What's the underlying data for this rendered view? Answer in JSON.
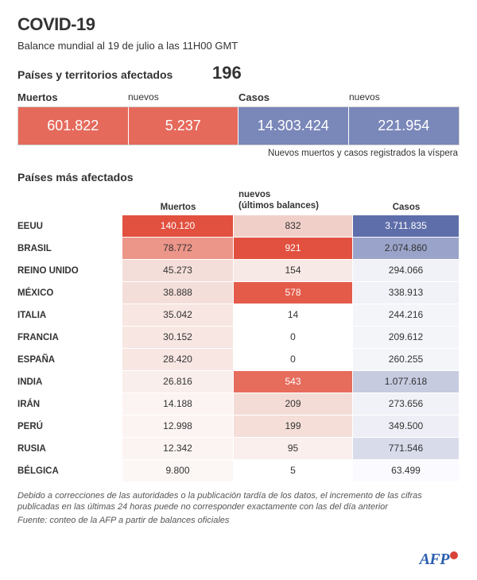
{
  "title": "COVID-19",
  "subtitle": "Balance mundial al 19 de julio a las 11H00 GMT",
  "affected": {
    "label": "Países y territorios afectados",
    "count": "196"
  },
  "summary": {
    "labels": {
      "deaths": "Muertos",
      "deaths_new": "nuevos",
      "cases": "Casos",
      "cases_new": "nuevos"
    },
    "values": {
      "deaths": "601.822",
      "deaths_new": "5.237",
      "cases": "14.303.424",
      "cases_new": "221.954"
    },
    "colors": {
      "deaths_bg": "#e56a5c",
      "cases_bg": "#7a87b9"
    }
  },
  "note": "Nuevos muertos y casos registrados la víspera",
  "section_title": "Países más afectados",
  "table": {
    "headers": {
      "country": "",
      "deaths": "Muertos",
      "new": "nuevos\n(últimos balances)",
      "cases": "Casos"
    },
    "rows": [
      {
        "country": "EEUU",
        "deaths": "140.120",
        "new": "832",
        "cases": "3.711.835",
        "bg": {
          "deaths": "#e2503f",
          "new": "#f1cfc9",
          "cases": "#5e6eaa"
        },
        "fg": {
          "deaths": "#ffffff",
          "new": "#333333",
          "cases": "#ffffff"
        }
      },
      {
        "country": "BRASIL",
        "deaths": "78.772",
        "new": "921",
        "cases": "2.074.860",
        "bg": {
          "deaths": "#ec9589",
          "new": "#e2503f",
          "cases": "#9aa3c9"
        },
        "fg": {
          "deaths": "#333333",
          "new": "#ffffff",
          "cases": "#333333"
        }
      },
      {
        "country": "REINO UNIDO",
        "deaths": "45.273",
        "new": "154",
        "cases": "294.066",
        "bg": {
          "deaths": "#f4ded9",
          "new": "#f7e9e5",
          "cases": "#f1f2f7"
        },
        "fg": {
          "deaths": "#333333",
          "new": "#333333",
          "cases": "#333333"
        }
      },
      {
        "country": "MÉXICO",
        "deaths": "38.888",
        "new": "578",
        "cases": "338.913",
        "bg": {
          "deaths": "#f4ded9",
          "new": "#e45b4a",
          "cases": "#f1f2f7"
        },
        "fg": {
          "deaths": "#333333",
          "new": "#ffffff",
          "cases": "#333333"
        }
      },
      {
        "country": "ITALIA",
        "deaths": "35.042",
        "new": "14",
        "cases": "244.216",
        "bg": {
          "deaths": "#f7e6e2",
          "new": "#ffffff",
          "cases": "#f4f5f9"
        },
        "fg": {
          "deaths": "#333333",
          "new": "#333333",
          "cases": "#333333"
        }
      },
      {
        "country": "FRANCIA",
        "deaths": "30.152",
        "new": "0",
        "cases": "209.612",
        "bg": {
          "deaths": "#f7e6e2",
          "new": "#ffffff",
          "cases": "#f4f5f9"
        },
        "fg": {
          "deaths": "#333333",
          "new": "#333333",
          "cases": "#333333"
        }
      },
      {
        "country": "ESPAÑA",
        "deaths": "28.420",
        "new": "0",
        "cases": "260.255",
        "bg": {
          "deaths": "#f7e6e2",
          "new": "#ffffff",
          "cases": "#f4f5f9"
        },
        "fg": {
          "deaths": "#333333",
          "new": "#333333",
          "cases": "#333333"
        }
      },
      {
        "country": "INDIA",
        "deaths": "26.816",
        "new": "543",
        "cases": "1.077.618",
        "bg": {
          "deaths": "#f9eeeb",
          "new": "#e66c5c",
          "cases": "#c6cbe0"
        },
        "fg": {
          "deaths": "#333333",
          "new": "#ffffff",
          "cases": "#333333"
        }
      },
      {
        "country": "IRÁN",
        "deaths": "14.188",
        "new": "209",
        "cases": "273.656",
        "bg": {
          "deaths": "#fbf4f2",
          "new": "#f4dcd6",
          "cases": "#f1f2f7"
        },
        "fg": {
          "deaths": "#333333",
          "new": "#333333",
          "cases": "#333333"
        }
      },
      {
        "country": "PERÚ",
        "deaths": "12.998",
        "new": "199",
        "cases": "349.500",
        "bg": {
          "deaths": "#fbf4f2",
          "new": "#f5ded8",
          "cases": "#eeeff6"
        },
        "fg": {
          "deaths": "#333333",
          "new": "#333333",
          "cases": "#333333"
        }
      },
      {
        "country": "RUSIA",
        "deaths": "12.342",
        "new": "95",
        "cases": "771.546",
        "bg": {
          "deaths": "#fbf4f2",
          "new": "#faefec",
          "cases": "#d8dbea"
        },
        "fg": {
          "deaths": "#333333",
          "new": "#333333",
          "cases": "#333333"
        }
      },
      {
        "country": "BÉLGICA",
        "deaths": "9.800",
        "new": "5",
        "cases": "63.499",
        "bg": {
          "deaths": "#fcf7f5",
          "new": "#ffffff",
          "cases": "#fafaff"
        },
        "fg": {
          "deaths": "#333333",
          "new": "#333333",
          "cases": "#333333"
        }
      }
    ]
  },
  "footnote": "Debido a correcciones de las autoridades o la publicación tardía de los datos, el incremento de las cifras publicadas en las últimas 24 horas puede no corresponder exactamente con las del día anterior",
  "source": "Fuente: conteo de la AFP a partir de balances oficiales",
  "logo": "AFP"
}
